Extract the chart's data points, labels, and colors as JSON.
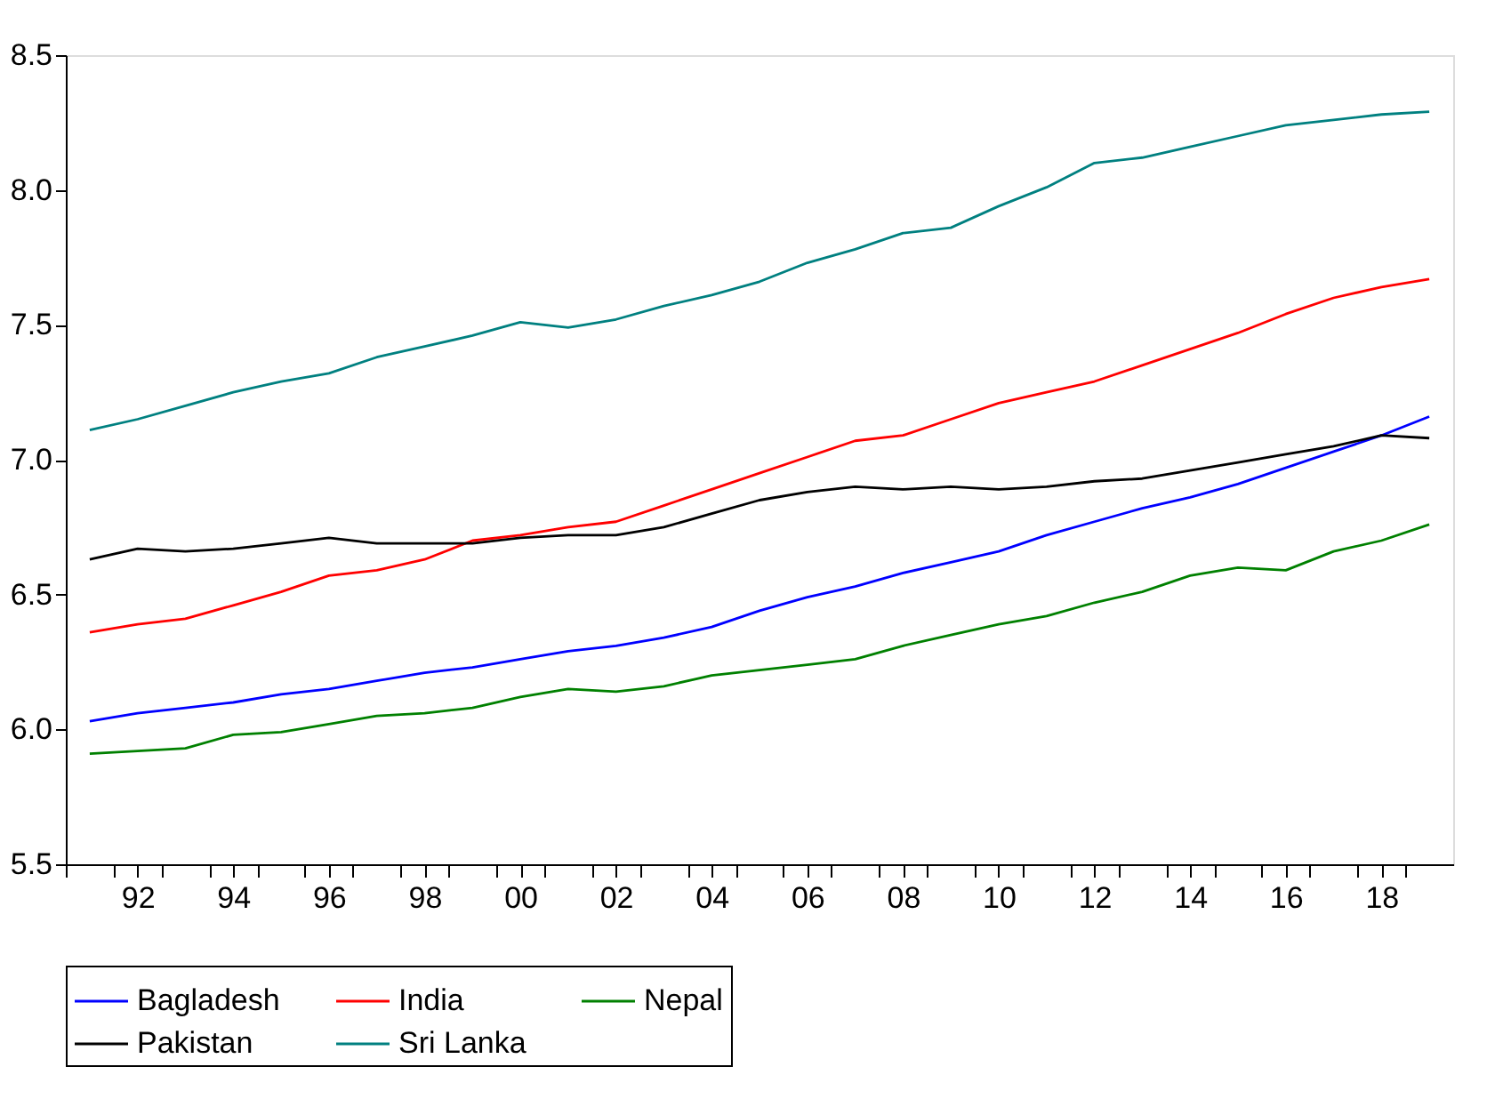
{
  "chart_data": {
    "type": "line",
    "x": [
      1991,
      1992,
      1993,
      1994,
      1995,
      1996,
      1997,
      1998,
      1999,
      2000,
      2001,
      2002,
      2003,
      2004,
      2005,
      2006,
      2007,
      2008,
      2009,
      2010,
      2011,
      2012,
      2013,
      2014,
      2015,
      2016,
      2017,
      2018,
      2019
    ],
    "series": [
      {
        "name": "Bagladesh",
        "color": "#0000ff",
        "values": [
          6.03,
          6.06,
          6.08,
          6.1,
          6.13,
          6.15,
          6.18,
          6.21,
          6.23,
          6.26,
          6.29,
          6.31,
          6.34,
          6.38,
          6.44,
          6.49,
          6.53,
          6.58,
          6.62,
          6.66,
          6.72,
          6.77,
          6.82,
          6.86,
          6.91,
          6.97,
          7.03,
          7.09,
          7.16
        ]
      },
      {
        "name": "India",
        "color": "#ff0000",
        "values": [
          6.36,
          6.39,
          6.41,
          6.46,
          6.51,
          6.57,
          6.59,
          6.63,
          6.7,
          6.72,
          6.75,
          6.77,
          6.83,
          6.89,
          6.95,
          7.01,
          7.07,
          7.09,
          7.15,
          7.21,
          7.25,
          7.29,
          7.35,
          7.41,
          7.47,
          7.54,
          7.6,
          7.64,
          7.67
        ]
      },
      {
        "name": "Nepal",
        "color": "#008000",
        "values": [
          5.91,
          5.92,
          5.93,
          5.98,
          5.99,
          6.02,
          6.05,
          6.06,
          6.08,
          6.12,
          6.15,
          6.14,
          6.16,
          6.2,
          6.22,
          6.24,
          6.26,
          6.31,
          6.35,
          6.39,
          6.42,
          6.47,
          6.51,
          6.57,
          6.6,
          6.59,
          6.66,
          6.7,
          6.76
        ]
      },
      {
        "name": "Pakistan",
        "color": "#000000",
        "values": [
          6.63,
          6.67,
          6.66,
          6.67,
          6.69,
          6.71,
          6.69,
          6.69,
          6.69,
          6.71,
          6.72,
          6.72,
          6.75,
          6.8,
          6.85,
          6.88,
          6.9,
          6.89,
          6.9,
          6.89,
          6.9,
          6.92,
          6.93,
          6.96,
          6.99,
          7.02,
          7.05,
          7.09,
          7.08
        ]
      },
      {
        "name": "Sri Lanka",
        "color": "#008080",
        "values": [
          7.11,
          7.15,
          7.2,
          7.25,
          7.29,
          7.32,
          7.38,
          7.42,
          7.46,
          7.51,
          7.49,
          7.52,
          7.57,
          7.61,
          7.66,
          7.73,
          7.78,
          7.84,
          7.86,
          7.94,
          8.01,
          8.1,
          8.12,
          8.16,
          8.2,
          8.24,
          8.26,
          8.28,
          8.29
        ]
      }
    ],
    "xlim": [
      1990.5,
      2019.5
    ],
    "xticks": [
      {
        "value": 1990.5,
        "label": null
      },
      {
        "value": 1991.5,
        "label": null
      },
      {
        "value": 1992,
        "label": "92"
      },
      {
        "value": 1992.5,
        "label": null
      },
      {
        "value": 1993.5,
        "label": null
      },
      {
        "value": 1994,
        "label": "94"
      },
      {
        "value": 1994.5,
        "label": null
      },
      {
        "value": 1995.5,
        "label": null
      },
      {
        "value": 1996,
        "label": "96"
      },
      {
        "value": 1996.5,
        "label": null
      },
      {
        "value": 1997.5,
        "label": null
      },
      {
        "value": 1998,
        "label": "98"
      },
      {
        "value": 1998.5,
        "label": null
      },
      {
        "value": 1999.5,
        "label": null
      },
      {
        "value": 2000,
        "label": "00"
      },
      {
        "value": 2000.5,
        "label": null
      },
      {
        "value": 2001.5,
        "label": null
      },
      {
        "value": 2002,
        "label": "02"
      },
      {
        "value": 2002.5,
        "label": null
      },
      {
        "value": 2003.5,
        "label": null
      },
      {
        "value": 2004,
        "label": "04"
      },
      {
        "value": 2004.5,
        "label": null
      },
      {
        "value": 2005.5,
        "label": null
      },
      {
        "value": 2006,
        "label": "06"
      },
      {
        "value": 2006.5,
        "label": null
      },
      {
        "value": 2007.5,
        "label": null
      },
      {
        "value": 2008,
        "label": "08"
      },
      {
        "value": 2008.5,
        "label": null
      },
      {
        "value": 2009.5,
        "label": null
      },
      {
        "value": 2010,
        "label": "10"
      },
      {
        "value": 2010.5,
        "label": null
      },
      {
        "value": 2011.5,
        "label": null
      },
      {
        "value": 2012,
        "label": "12"
      },
      {
        "value": 2012.5,
        "label": null
      },
      {
        "value": 2013.5,
        "label": null
      },
      {
        "value": 2014,
        "label": "14"
      },
      {
        "value": 2014.5,
        "label": null
      },
      {
        "value": 2015.5,
        "label": null
      },
      {
        "value": 2016,
        "label": "16"
      },
      {
        "value": 2016.5,
        "label": null
      },
      {
        "value": 2017.5,
        "label": null
      },
      {
        "value": 2018,
        "label": "18"
      },
      {
        "value": 2018.5,
        "label": null
      }
    ],
    "ylim": [
      5.5,
      8.5
    ],
    "yticks": [
      {
        "value": 5.5,
        "label": "5.5"
      },
      {
        "value": 6,
        "label": "6.0"
      },
      {
        "value": 6.5,
        "label": "6.5"
      },
      {
        "value": 7,
        "label": "7.0"
      },
      {
        "value": 7.5,
        "label": "7.5"
      },
      {
        "value": 8,
        "label": "8.0"
      },
      {
        "value": 8.5,
        "label": "8.5"
      }
    ],
    "grid": false,
    "legend": "bottom",
    "line_style": "solid",
    "marker": "none"
  }
}
